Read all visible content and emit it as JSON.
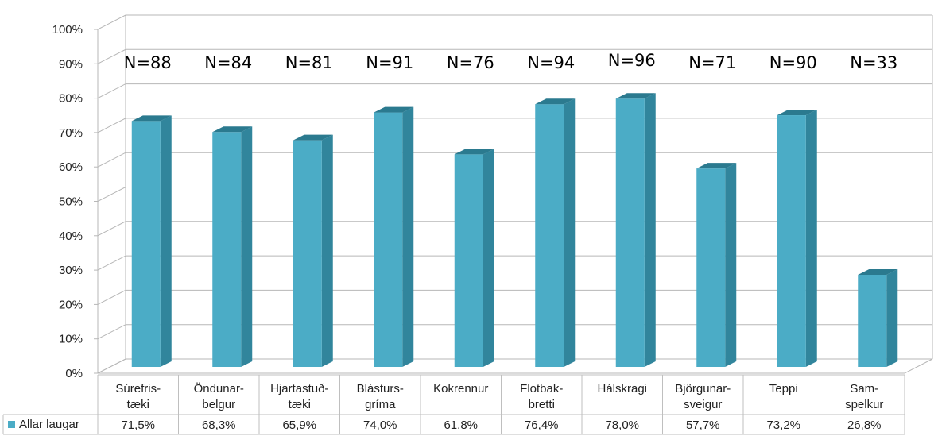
{
  "chart_data": {
    "type": "bar",
    "categories": [
      [
        "Súrefris-",
        "tæki"
      ],
      [
        "Öndunar-",
        "belgur"
      ],
      [
        "Hjartastuð-",
        "tæki"
      ],
      [
        "Blásturs-",
        "gríma"
      ],
      [
        "Kokrennur"
      ],
      [
        "Flotbak-",
        "bretti"
      ],
      [
        "Hálskragi"
      ],
      [
        "Björgunar-",
        "sveigur"
      ],
      [
        "Teppi"
      ],
      [
        "Sam-",
        "spelkur"
      ]
    ],
    "series": [
      {
        "name": "Allar laugar",
        "values": [
          71.5,
          68.3,
          65.9,
          74.0,
          61.8,
          76.4,
          78.0,
          57.7,
          73.2,
          26.8
        ],
        "value_labels": [
          "71,5%",
          "68,3%",
          "65,9%",
          "74,0%",
          "61,8%",
          "76,4%",
          "78,0%",
          "57,7%",
          "73,2%",
          "26,8%"
        ],
        "color": "#4bacc6"
      }
    ],
    "annotations": [
      "N=88",
      "N=84",
      "N=81",
      "N=91",
      "N=76",
      "N=94",
      "N=96",
      "N=71",
      "N=90",
      "N=33"
    ],
    "y_ticks": [
      "0%",
      "10%",
      "20%",
      "30%",
      "40%",
      "50%",
      "60%",
      "70%",
      "80%",
      "90%",
      "100%"
    ],
    "ylim": [
      0,
      100
    ],
    "grid": true,
    "legend": "data-table-left",
    "colors": {
      "bar_front": "#4bacc6",
      "bar_side": "#31859c",
      "bar_top": "#2b7a8f",
      "grid": "#b7b7b7"
    }
  }
}
